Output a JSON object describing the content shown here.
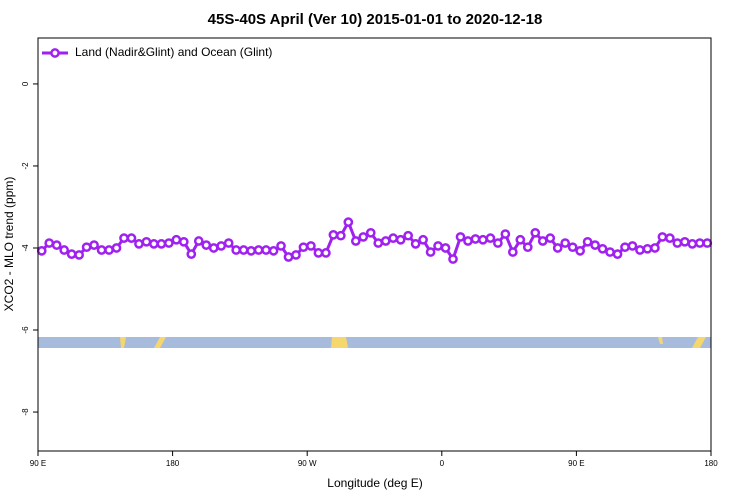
{
  "chart_data": {
    "type": "line",
    "title": "45S-40S April (Ver 10)   2015-01-01 to 2020-12-18",
    "x_label": "Longitude (deg E)",
    "y_label": "XCO2 - MLO trend (ppm)",
    "xlim": [
      90,
      540
    ],
    "ylim": [
      -8.95,
      1.12
    ],
    "xticks": [
      {
        "value": 90,
        "label": "90 E"
      },
      180,
      {
        "value": 270,
        "label": "90 W"
      },
      {
        "value": 360,
        "label": "0"
      },
      {
        "value": 450,
        "label": "90 E"
      },
      {
        "value": 540,
        "label": "180"
      }
    ],
    "yticks": [
      0,
      -2,
      -4,
      -6,
      -8
    ],
    "legend": "top-left",
    "x": [
      92.5,
      97.5,
      102.5,
      107.5,
      112.5,
      117.5,
      122.5,
      127.5,
      132.5,
      137.5,
      142.5,
      147.5,
      152.5,
      157.5,
      162.5,
      167.5,
      172.5,
      177.5,
      182.5,
      187.5,
      192.5,
      197.5,
      202.5,
      207.5,
      212.5,
      217.5,
      222.5,
      227.5,
      232.5,
      237.5,
      242.5,
      247.5,
      252.5,
      257.5,
      262.5,
      267.5,
      272.5,
      277.5,
      282.5,
      287.5,
      292.5,
      297.5,
      302.5,
      307.5,
      312.5,
      317.5,
      322.5,
      327.5,
      332.5,
      337.5,
      342.5,
      347.5,
      352.5,
      357.5,
      362.5,
      367.5,
      372.5,
      377.5,
      382.5,
      387.5,
      392.5,
      397.5,
      402.5,
      407.5,
      412.5,
      417.5,
      422.5,
      427.5,
      432.5,
      437.5,
      442.5,
      447.5,
      452.5,
      457.5,
      462.5,
      467.5,
      472.5,
      477.5,
      482.5,
      487.5,
      492.5,
      497.5,
      502.5,
      507.5,
      512.5,
      517.5,
      522.5,
      527.5,
      532.5,
      537.5
    ],
    "series": [
      {
        "name": "Land (Nadir&Glint) and Ocean (Glint)",
        "color": "#a020f0",
        "values": [
          -4.07,
          -3.88,
          -3.93,
          -4.05,
          -4.15,
          -4.17,
          -3.98,
          -3.93,
          -4.05,
          -4.05,
          -4.0,
          -3.76,
          -3.76,
          -3.9,
          -3.85,
          -3.9,
          -3.9,
          -3.88,
          -3.8,
          -3.85,
          -4.15,
          -3.83,
          -3.93,
          -4.0,
          -3.95,
          -3.88,
          -4.05,
          -4.05,
          -4.07,
          -4.05,
          -4.05,
          -4.07,
          -3.95,
          -4.22,
          -4.17,
          -3.98,
          -3.95,
          -4.12,
          -4.12,
          -3.68,
          -3.7,
          -3.37,
          -3.83,
          -3.73,
          -3.63,
          -3.88,
          -3.83,
          -3.76,
          -3.8,
          -3.7,
          -3.9,
          -3.8,
          -4.1,
          -3.95,
          -4.0,
          -4.27,
          -3.73,
          -3.83,
          -3.78,
          -3.8,
          -3.76,
          -3.88,
          -3.66,
          -4.1,
          -3.8,
          -3.98,
          -3.63,
          -3.83,
          -3.76,
          -4.0,
          -3.88,
          -3.98,
          -4.07,
          -3.85,
          -3.93,
          -4.02,
          -4.1,
          -4.15,
          -3.98,
          -3.95,
          -4.05,
          -4.02,
          -4.0,
          -3.73,
          -3.76,
          -3.88,
          -3.85,
          -3.9,
          -3.88,
          -3.88
        ]
      }
    ]
  }
}
